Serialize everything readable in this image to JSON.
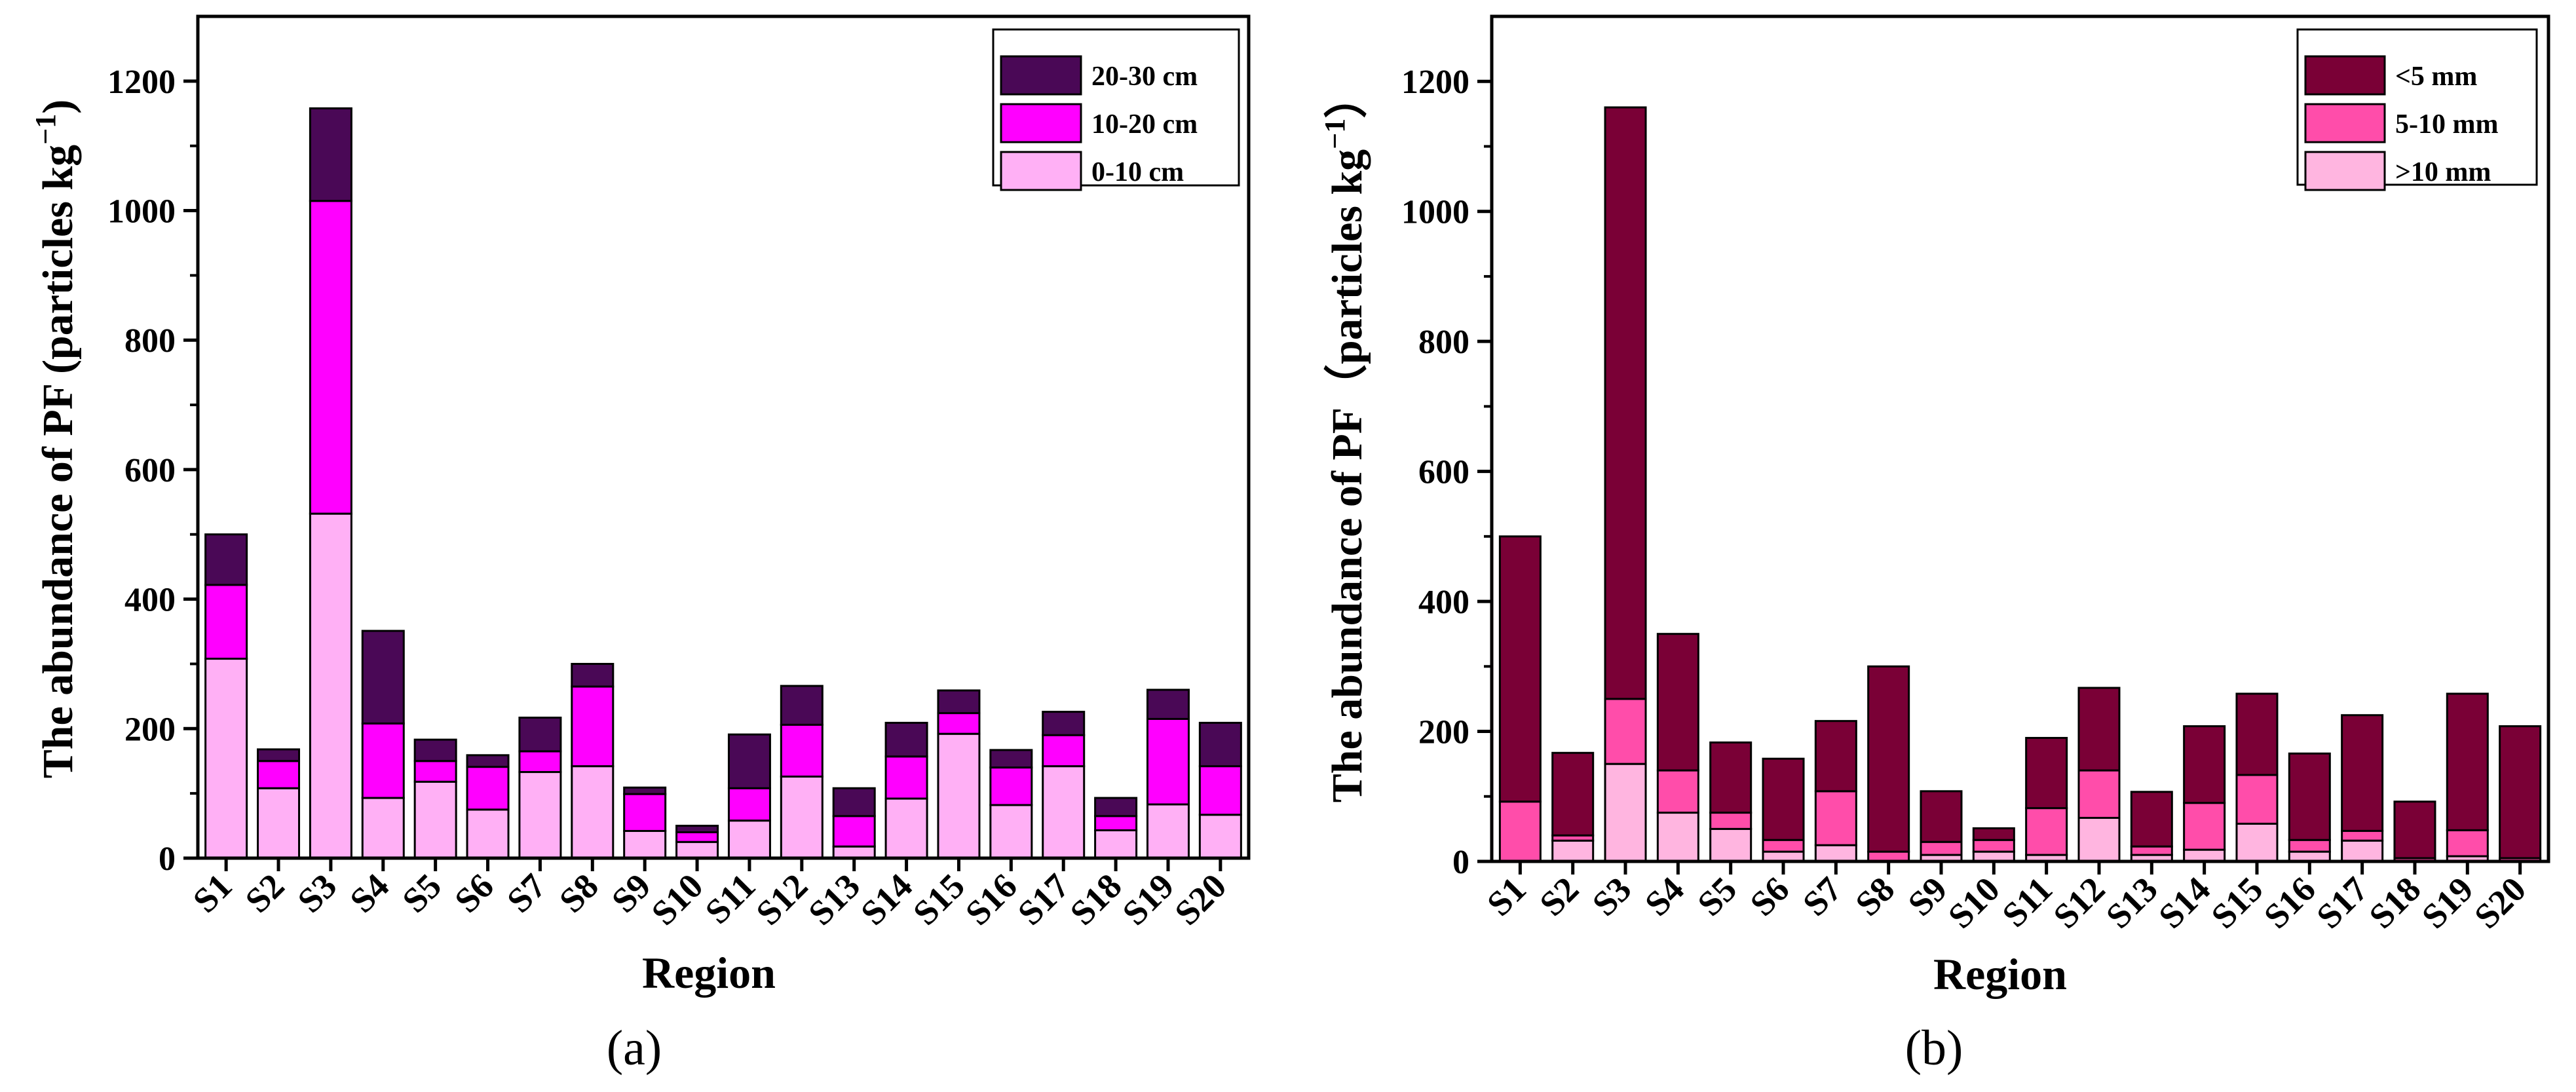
{
  "chart_data": [
    {
      "type": "bar",
      "stacked": true,
      "panel_label": "(a)",
      "title": "",
      "xlabel": "Region",
      "ylabel": "The abundance of PF (particles kg⁻¹)",
      "ylabel_parts": {
        "main": "The abundance of PF (particles kg",
        "sup": "−1",
        "close": ")"
      },
      "ylim": [
        0,
        1300
      ],
      "yticks": [
        0,
        200,
        400,
        600,
        800,
        1000,
        1200
      ],
      "legend_position": "top-right",
      "categories": [
        "S1",
        "S2",
        "S3",
        "S4",
        "S5",
        "S6",
        "S7",
        "S8",
        "S9",
        "S10",
        "S11",
        "S12",
        "S13",
        "S14",
        "S15",
        "S16",
        "S17",
        "S18",
        "S19",
        "S20"
      ],
      "series": [
        {
          "name": "0-10 cm",
          "color": "#FFB0F5",
          "values": [
            308,
            108,
            532,
            93,
            118,
            75,
            133,
            142,
            42,
            25,
            58,
            126,
            18,
            92,
            192,
            82,
            142,
            43,
            83,
            67
          ]
        },
        {
          "name": "10-20 cm",
          "color": "#FF00FF",
          "values": [
            114,
            42,
            483,
            115,
            32,
            66,
            32,
            123,
            57,
            15,
            50,
            80,
            47,
            65,
            32,
            58,
            48,
            22,
            132,
            75
          ]
        },
        {
          "name": "20-30 cm",
          "color": "#4A0856",
          "values": [
            78,
            18,
            143,
            143,
            33,
            18,
            52,
            35,
            10,
            10,
            83,
            60,
            43,
            52,
            35,
            27,
            36,
            28,
            45,
            67
          ]
        }
      ]
    },
    {
      "type": "bar",
      "stacked": true,
      "panel_label": "(b)",
      "title": "",
      "xlabel": "Region",
      "ylabel": "The abundance of PF（particles kg⁻¹）",
      "ylabel_parts": {
        "main": "The abundance of PF（particles kg",
        "sup": "−1",
        "close": "）"
      },
      "ylim": [
        0,
        1300
      ],
      "yticks": [
        0,
        200,
        400,
        600,
        800,
        1000,
        1200
      ],
      "legend_position": "top-right",
      "categories": [
        "S1",
        "S2",
        "S3",
        "S4",
        "S5",
        "S6",
        "S7",
        "S8",
        "S9",
        "S10",
        "S11",
        "S12",
        "S13",
        "S14",
        "S15",
        "S16",
        "S17",
        "S18",
        "S19",
        "S20"
      ],
      "series": [
        {
          "name": ">10 mm",
          "color": "#FFB5E0",
          "values": [
            0,
            32,
            150,
            75,
            50,
            15,
            25,
            0,
            10,
            15,
            10,
            67,
            10,
            18,
            58,
            15,
            32,
            0,
            8,
            0
          ]
        },
        {
          "name": "5-10 mm",
          "color": "#FF4DAA",
          "values": [
            92,
            8,
            100,
            65,
            25,
            18,
            83,
            15,
            20,
            18,
            72,
            73,
            13,
            72,
            75,
            18,
            15,
            5,
            40,
            5
          ]
        },
        {
          "name": "<5 mm",
          "color": "#7A0036",
          "values": [
            408,
            127,
            910,
            210,
            108,
            125,
            108,
            285,
            78,
            18,
            108,
            127,
            84,
            118,
            125,
            133,
            178,
            87,
            210,
            203
          ]
        }
      ]
    }
  ]
}
